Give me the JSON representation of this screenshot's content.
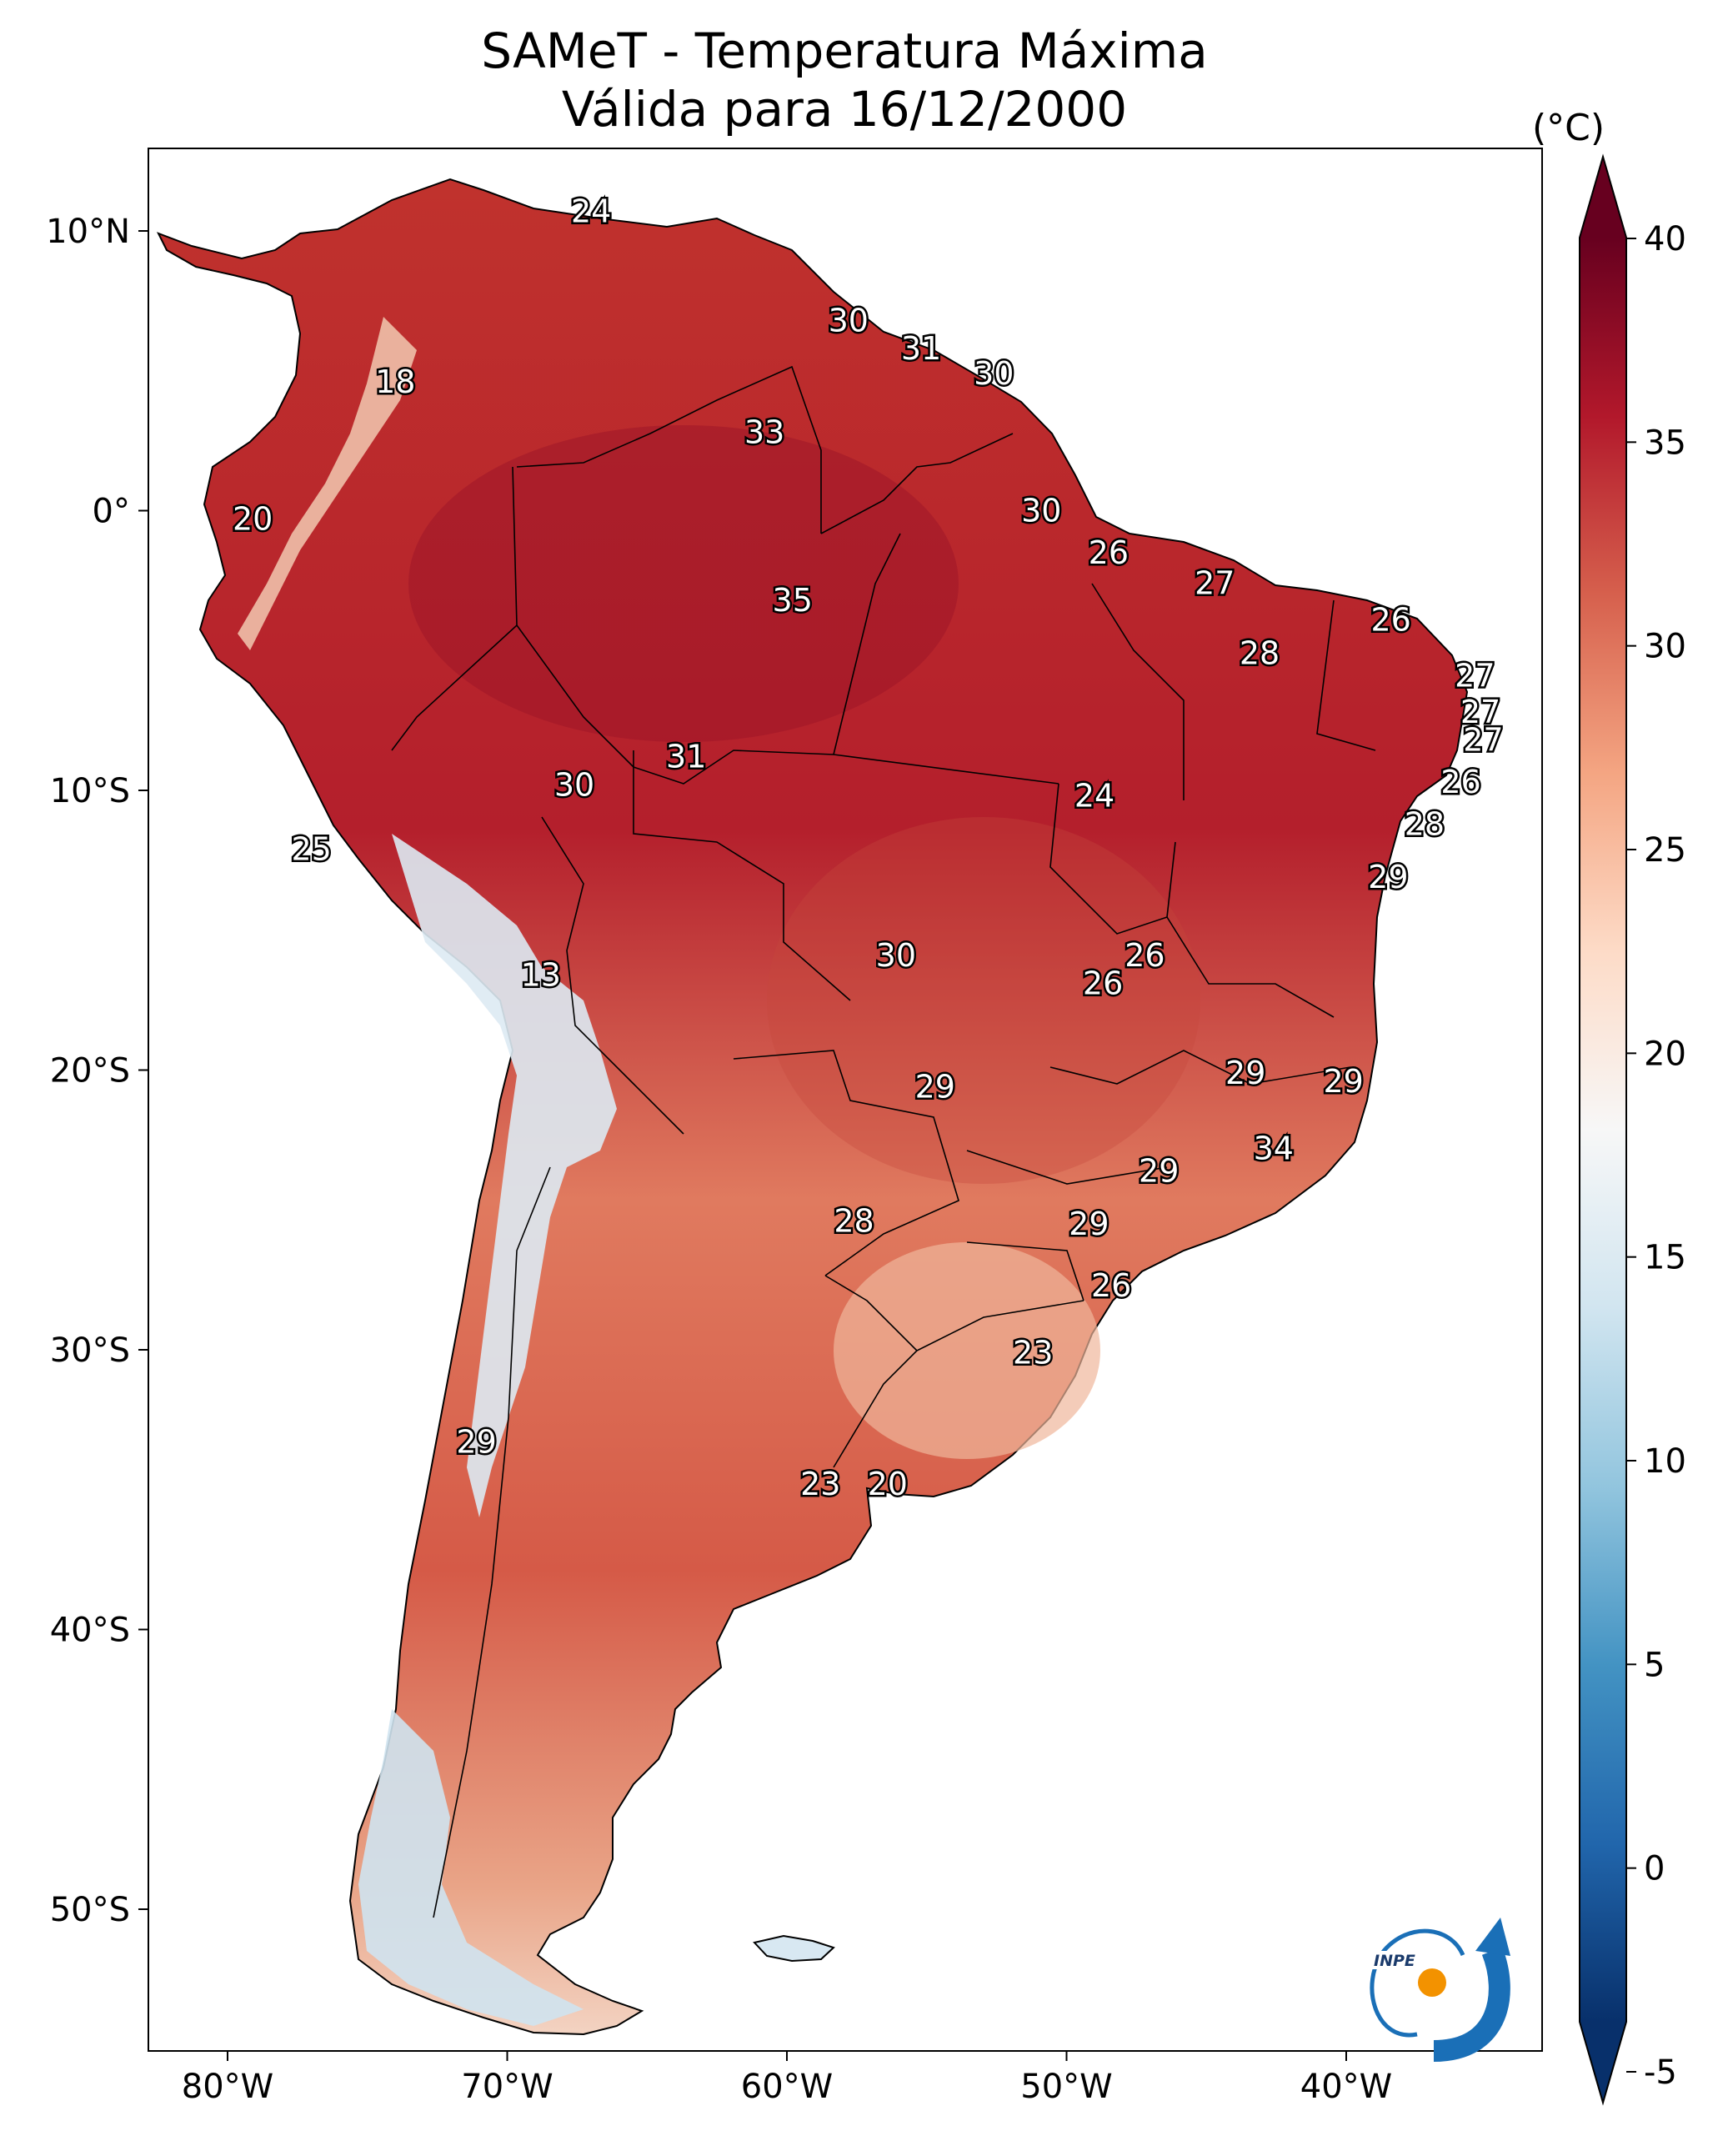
{
  "title": {
    "line1": "SAMeT - Temperatura Máxima",
    "line2": "Válida para 16/12/2000"
  },
  "colorbar": {
    "unit": "(°C)",
    "min": -5,
    "max": 40,
    "ticks": [
      "40",
      "35",
      "30",
      "25",
      "20",
      "15",
      "10",
      "5",
      "0",
      "-5"
    ],
    "tick_values": [
      40,
      35,
      30,
      25,
      20,
      15,
      10,
      5,
      0,
      -5
    ],
    "colors": [
      "#08306b",
      "#2166ac",
      "#4393c3",
      "#92c5de",
      "#d1e5f0",
      "#f7f7f7",
      "#fddbc7",
      "#f4a582",
      "#d6604d",
      "#b2182b",
      "#67001f"
    ]
  },
  "axes": {
    "lon_labels": [
      "80°W",
      "70°W",
      "60°W",
      "50°W",
      "40°W"
    ],
    "lat_labels": [
      "10°N",
      "0°",
      "10°S",
      "20°S",
      "30°S",
      "40°S",
      "50°S"
    ]
  },
  "contour_labels": [
    {
      "text": "24",
      "lon": -67,
      "lat": 10.7
    },
    {
      "text": "18",
      "lon": -74,
      "lat": 4.6
    },
    {
      "text": "30",
      "lon": -57.8,
      "lat": 6.8
    },
    {
      "text": "31",
      "lon": -55.2,
      "lat": 5.8
    },
    {
      "text": "30",
      "lon": -52.6,
      "lat": 4.9
    },
    {
      "text": "33",
      "lon": -60.8,
      "lat": 2.8
    },
    {
      "text": "20",
      "lon": -79.1,
      "lat": -0.3
    },
    {
      "text": "30",
      "lon": -50.9,
      "lat": 0
    },
    {
      "text": "26",
      "lon": -48.5,
      "lat": -1.5
    },
    {
      "text": "35",
      "lon": -59.8,
      "lat": -3.2
    },
    {
      "text": "27",
      "lon": -44.7,
      "lat": -2.6
    },
    {
      "text": "26",
      "lon": -38.4,
      "lat": -3.9
    },
    {
      "text": "28",
      "lon": -43.1,
      "lat": -5.1
    },
    {
      "text": "27",
      "lon": -35.4,
      "lat": -5.9
    },
    {
      "text": "27",
      "lon": -35.2,
      "lat": -7.2
    },
    {
      "text": "27",
      "lon": -35.1,
      "lat": -8.2
    },
    {
      "text": "31",
      "lon": -63.6,
      "lat": -8.8
    },
    {
      "text": "30",
      "lon": -67.6,
      "lat": -9.8
    },
    {
      "text": "26",
      "lon": -35.9,
      "lat": -9.7
    },
    {
      "text": "24",
      "lon": -49,
      "lat": -10.2
    },
    {
      "text": "28",
      "lon": -37.2,
      "lat": -11.2
    },
    {
      "text": "25",
      "lon": -77,
      "lat": -12.1
    },
    {
      "text": "29",
      "lon": -38.5,
      "lat": -13.1
    },
    {
      "text": "26",
      "lon": -47.2,
      "lat": -15.9
    },
    {
      "text": "30",
      "lon": -56.1,
      "lat": -15.9
    },
    {
      "text": "26",
      "lon": -48.7,
      "lat": -16.9
    },
    {
      "text": "13",
      "lon": -68.8,
      "lat": -16.6
    },
    {
      "text": "29",
      "lon": -43.6,
      "lat": -20.1
    },
    {
      "text": "29",
      "lon": -40.1,
      "lat": -20.4
    },
    {
      "text": "29",
      "lon": -54.7,
      "lat": -20.6
    },
    {
      "text": "34",
      "lon": -42.6,
      "lat": -22.8
    },
    {
      "text": "29",
      "lon": -46.7,
      "lat": -23.6
    },
    {
      "text": "28",
      "lon": -57.6,
      "lat": -25.4
    },
    {
      "text": "29",
      "lon": -49.2,
      "lat": -25.5
    },
    {
      "text": "26",
      "lon": -48.4,
      "lat": -27.7
    },
    {
      "text": "23",
      "lon": -51.2,
      "lat": -30.1
    },
    {
      "text": "29",
      "lon": -71.1,
      "lat": -33.3
    },
    {
      "text": "23",
      "lon": -58.8,
      "lat": -34.8
    },
    {
      "text": "20",
      "lon": -56.4,
      "lat": -34.8
    }
  ]
}
